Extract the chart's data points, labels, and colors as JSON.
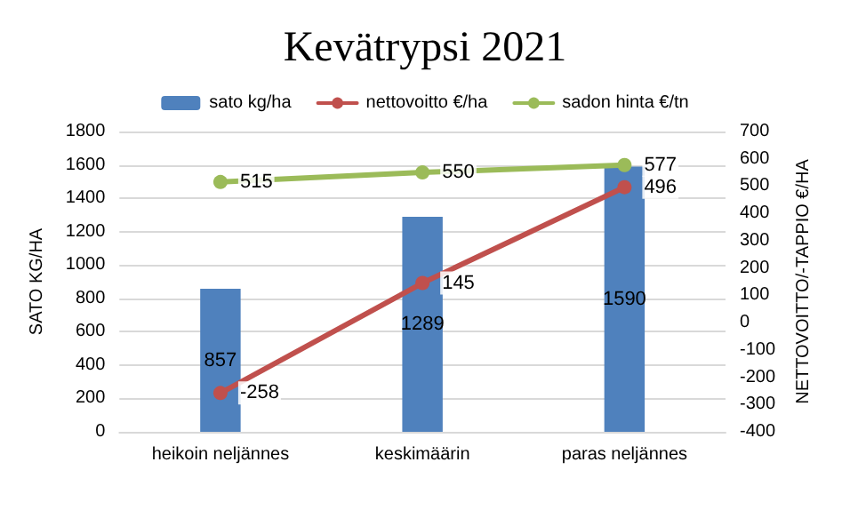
{
  "chart_data": {
    "type": "bar",
    "title": "Kevätrypsi 2021",
    "ylabel": "SATO KG/HA",
    "y2label": "NETTOVOITTO/-TAPPIO €/HA",
    "categories": [
      "heikoin neljännes",
      "keskimäärin",
      "paras neljännes"
    ],
    "series": [
      {
        "name": "sato kg/ha",
        "color": "#4f81bd",
        "values": [
          857,
          1289,
          1590
        ]
      },
      {
        "name": "nettovoitto €/ha",
        "type": "line",
        "axis": "y2",
        "color": "#c0504d",
        "values": [
          -258,
          145,
          496
        ]
      },
      {
        "name": "sadon hinta €/tn",
        "type": "line",
        "axis": "y2",
        "color": "#9bbb59",
        "values": [
          515,
          550,
          577
        ]
      }
    ],
    "ylim": [
      0,
      1800
    ],
    "yticks": [
      0,
      200,
      400,
      600,
      800,
      1000,
      1200,
      1400,
      1600,
      1800
    ],
    "y2lim": [
      -400,
      700
    ],
    "y2ticks": [
      -400,
      -300,
      -200,
      -100,
      0,
      100,
      200,
      300,
      400,
      500,
      600,
      700
    ],
    "data_labels": true,
    "grid": "y",
    "legend": "top",
    "marker": "circle",
    "line_style": "solid"
  }
}
